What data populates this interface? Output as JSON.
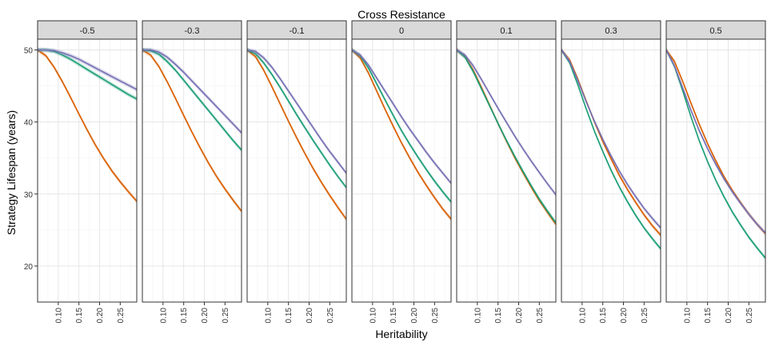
{
  "chart_data": {
    "type": "line",
    "title": "Cross Resistance",
    "xlabel": "Heritability",
    "ylabel": "Strategy Lifespan (years)",
    "xlim": [
      0.05,
      0.29
    ],
    "ylim": [
      15,
      51.5
    ],
    "x_ticks": [
      0.1,
      0.15,
      0.2,
      0.25
    ],
    "x_tick_labels": [
      "0.10",
      "0.15",
      "0.20",
      "0.25"
    ],
    "y_ticks": [
      20,
      30,
      40,
      50
    ],
    "y_tick_labels": [
      "20",
      "30",
      "40",
      "50"
    ],
    "grid": true,
    "legend": "none",
    "colors": {
      "orange": "#d95f02",
      "green": "#1b9e77",
      "purple": "#7570b3"
    },
    "x": [
      0.05,
      0.07,
      0.09,
      0.11,
      0.13,
      0.15,
      0.17,
      0.19,
      0.21,
      0.23,
      0.25,
      0.27,
      0.29
    ],
    "facets": [
      {
        "label": "-0.5",
        "series": [
          {
            "color": "orange",
            "values": [
              50,
              49.2,
              47.6,
              45.6,
              43.4,
              41.1,
              38.9,
              36.8,
              34.9,
              33.2,
              31.7,
              30.3,
              29.0
            ]
          },
          {
            "color": "green",
            "values": [
              50,
              50,
              49.8,
              49.3,
              48.7,
              48.0,
              47.3,
              46.6,
              45.9,
              45.2,
              44.5,
              43.8,
              43.2
            ]
          },
          {
            "color": "purple",
            "values": [
              50,
              50,
              49.9,
              49.6,
              49.2,
              48.7,
              48.1,
              47.5,
              46.9,
              46.3,
              45.7,
              45.1,
              44.5
            ]
          }
        ]
      },
      {
        "label": "-0.3",
        "series": [
          {
            "color": "orange",
            "values": [
              50,
              49.3,
              47.7,
              45.6,
              43.3,
              40.9,
              38.6,
              36.4,
              34.3,
              32.4,
              30.7,
              29.1,
              27.6
            ]
          },
          {
            "color": "green",
            "values": [
              50,
              49.9,
              49.4,
              48.4,
              47.2,
              45.8,
              44.4,
              43.0,
              41.6,
              40.2,
              38.8,
              37.4,
              36.1
            ]
          },
          {
            "color": "purple",
            "values": [
              50,
              50,
              49.7,
              49.0,
              48.0,
              46.9,
              45.7,
              44.5,
              43.3,
              42.1,
              40.9,
              39.7,
              38.5
            ]
          }
        ]
      },
      {
        "label": "-0.1",
        "series": [
          {
            "color": "orange",
            "values": [
              50,
              49.1,
              47.2,
              44.9,
              42.5,
              40.1,
              37.8,
              35.6,
              33.5,
              31.6,
              29.8,
              28.1,
              26.5
            ]
          },
          {
            "color": "green",
            "values": [
              50,
              49.5,
              48.2,
              46.6,
              44.8,
              42.9,
              41.0,
              39.2,
              37.4,
              35.7,
              34.0,
              32.4,
              30.9
            ]
          },
          {
            "color": "purple",
            "values": [
              50,
              49.8,
              48.9,
              47.6,
              46.0,
              44.3,
              42.6,
              40.9,
              39.2,
              37.5,
              35.9,
              34.4,
              32.9
            ]
          }
        ]
      },
      {
        "label": "0",
        "series": [
          {
            "color": "orange",
            "values": [
              50,
              48.9,
              46.8,
              44.3,
              41.8,
              39.4,
              37.1,
              35.0,
              33.0,
              31.2,
              29.5,
              27.9,
              26.5
            ]
          },
          {
            "color": "green",
            "values": [
              50,
              49.2,
              47.5,
              45.3,
              43.1,
              40.9,
              38.8,
              36.9,
              35.1,
              33.4,
              31.8,
              30.3,
              28.9
            ]
          },
          {
            "color": "purple",
            "values": [
              50,
              49.3,
              47.9,
              46.1,
              44.3,
              42.5,
              40.7,
              39.0,
              37.4,
              35.8,
              34.3,
              32.9,
              31.5
            ]
          }
        ]
      },
      {
        "label": "0.1",
        "series": [
          {
            "color": "orange",
            "values": [
              50,
              49.1,
              47.2,
              44.8,
              42.3,
              39.8,
              37.4,
              35.1,
              33.0,
              31.0,
              29.1,
              27.4,
              25.8
            ]
          },
          {
            "color": "green",
            "values": [
              50,
              49.0,
              47.0,
              44.6,
              42.2,
              39.8,
              37.5,
              35.3,
              33.2,
              31.2,
              29.3,
              27.6,
              26.0
            ]
          },
          {
            "color": "purple",
            "values": [
              50,
              49.3,
              47.8,
              45.9,
              43.9,
              41.9,
              40.0,
              38.1,
              36.3,
              34.6,
              33.0,
              31.4,
              29.9
            ]
          }
        ]
      },
      {
        "label": "0.3",
        "series": [
          {
            "color": "orange",
            "values": [
              50,
              48.6,
              45.9,
              42.9,
              40.0,
              37.3,
              34.9,
              32.6,
              30.6,
              28.8,
              27.1,
              25.6,
              24.3
            ]
          },
          {
            "color": "green",
            "values": [
              50,
              48.2,
              45.1,
              41.8,
              38.7,
              35.9,
              33.3,
              31.0,
              28.9,
              27.0,
              25.3,
              23.8,
              22.4
            ]
          },
          {
            "color": "purple",
            "values": [
              50,
              48.4,
              45.7,
              42.8,
              40.1,
              37.6,
              35.3,
              33.2,
              31.3,
              29.6,
              28.0,
              26.6,
              25.3
            ]
          }
        ]
      },
      {
        "label": "0.5",
        "series": [
          {
            "color": "orange",
            "values": [
              50,
              48.4,
              45.6,
              42.6,
              39.7,
              37.0,
              34.6,
              32.4,
              30.5,
              28.8,
              27.2,
              25.8,
              24.5
            ]
          },
          {
            "color": "green",
            "values": [
              50,
              47.7,
              44.3,
              40.7,
              37.4,
              34.5,
              31.9,
              29.6,
              27.5,
              25.7,
              24.0,
              22.5,
              21.1
            ]
          },
          {
            "color": "purple",
            "values": [
              50,
              47.8,
              44.7,
              41.6,
              38.8,
              36.3,
              34.1,
              32.1,
              30.3,
              28.7,
              27.2,
              25.8,
              24.6
            ]
          }
        ]
      }
    ]
  }
}
